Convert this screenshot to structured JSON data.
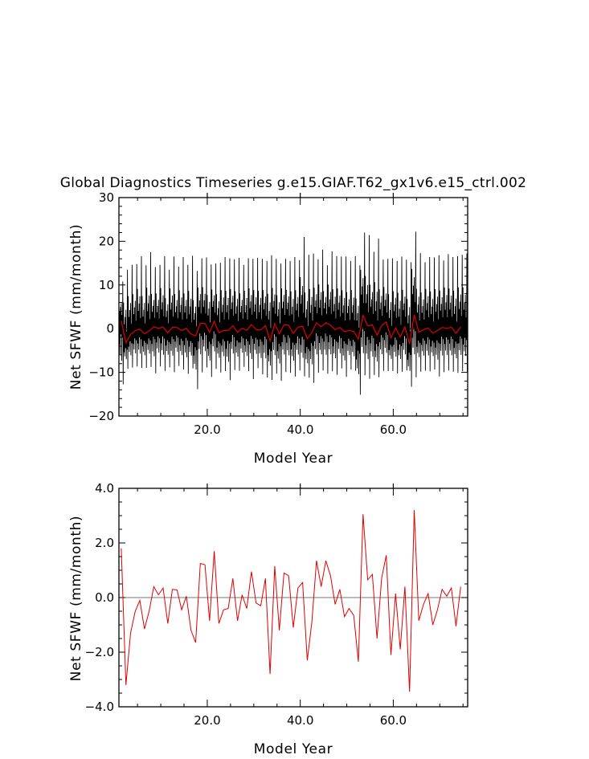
{
  "chart_data": [
    {
      "type": "line",
      "title": "Global Diagnostics Timeseries g.e15.GIAF.T62_gx1v6.e15_ctrl.002",
      "xlabel": "Model Year",
      "ylabel": "Net SFWF (mm/month)",
      "xlim": [
        1,
        76
      ],
      "ylim": [
        -20,
        30
      ],
      "xticks": [
        20,
        40,
        60
      ],
      "xtick_labels": [
        "20.0",
        "40.0",
        "60.0"
      ],
      "yticks": [
        -20,
        -10,
        0,
        10,
        20,
        30
      ],
      "ytick_labels": [
        "−20",
        "−10",
        "0",
        "10",
        "20",
        "30"
      ],
      "zero_line": true,
      "series": [
        {
          "color": "#000000",
          "description": "monthly",
          "monthly_peaks": [
            10.8,
            13.5,
            14.6,
            14.8,
            16.6,
            14.5,
            17.5,
            14.1,
            14.6,
            16.6,
            13.5,
            16.5,
            14.2,
            16.4,
            14.6,
            16.7,
            13.2,
            16.1,
            16.3,
            14.7,
            14.9,
            15.1,
            16.4,
            16.1,
            15.9,
            16.2,
            14.6,
            16.1,
            16.0,
            16.2,
            16.0,
            15.5,
            16.8,
            16.0,
            14.9,
            16.0,
            15.5,
            16.4,
            15.7,
            21.0,
            16.9,
            17.2,
            15.9,
            18.1,
            14.5,
            17.7,
            16.6,
            16.5,
            16.5,
            15.5,
            16.6,
            14.5,
            22.0,
            21.4,
            17.6,
            20.6,
            15.8,
            16.0,
            16.1,
            15.5,
            16.5,
            15.8,
            15.2,
            22.2,
            17.3,
            15.2,
            16.4,
            16.3,
            16.8,
            15.6,
            17.1,
            16.4,
            16.6,
            16.9,
            17.2
          ],
          "monthly_troughs": [
            -13.5,
            -9.5,
            -9.3,
            -9.1,
            -9.5,
            -9.4,
            -9.2,
            -10.8,
            -9.1,
            -10.2,
            -9.3,
            -10.5,
            -9.0,
            -9.8,
            -10.9,
            -9.5,
            -14.5,
            -10.6,
            -9.4,
            -11.6,
            -9.8,
            -10.5,
            -10.2,
            -12.4,
            -10.0,
            -10.1,
            -9.2,
            -10.2,
            -12.2,
            -9.5,
            -11.0,
            -11.8,
            -12.2,
            -10.9,
            -12.5,
            -10.5,
            -10.7,
            -11.5,
            -10.1,
            -11.5,
            -11.7,
            -13.0,
            -10.7,
            -10.1,
            -10.9,
            -10.3,
            -11.1,
            -9.6,
            -11.6,
            -9.8,
            -10.1,
            -15.8,
            -11.4,
            -12.1,
            -11.2,
            -11.6,
            -10.2,
            -10.3,
            -10.1,
            -10.8,
            -10.3,
            -10.1,
            -13.8,
            -11.9,
            -10.3,
            -10.1,
            -10.3,
            -9.8,
            -11.5,
            -10.5,
            -10.1,
            -10.4,
            -10.6,
            -10.3,
            -10.4
          ]
        },
        {
          "color": "#e00000",
          "description": "annual-mean",
          "values_ref": "annual_means"
        }
      ]
    },
    {
      "type": "line",
      "title": "",
      "xlabel": "Model Year",
      "ylabel": "Net SFWF (mm/month)",
      "xlim": [
        1,
        76
      ],
      "ylim": [
        -4,
        4
      ],
      "xticks": [
        20,
        40,
        60
      ],
      "xtick_labels": [
        "20.0",
        "40.0",
        "60.0"
      ],
      "yticks": [
        -4,
        -2,
        0,
        2,
        4
      ],
      "ytick_labels": [
        "−4.0",
        "−2.0",
        "0.0",
        "2.0",
        "4.0"
      ],
      "zero_line": true,
      "series": [
        {
          "color": "#e00000",
          "x_start": 1.5,
          "x_step": 1,
          "values": [
            1.8,
            -3.2,
            -1.3,
            -0.5,
            -0.1,
            -1.15,
            -0.5,
            0.4,
            0.1,
            0.35,
            -0.95,
            0.3,
            0.28,
            -0.45,
            0.05,
            -1.2,
            -1.65,
            1.25,
            1.2,
            -0.85,
            1.7,
            -0.95,
            -0.45,
            -0.4,
            0.7,
            -0.85,
            0.1,
            -0.4,
            0.95,
            -0.2,
            -0.3,
            0.7,
            -2.8,
            1.15,
            -1.2,
            0.9,
            0.8,
            -1.1,
            0.35,
            0.55,
            -2.3,
            -0.9,
            1.35,
            0.4,
            1.35,
            0.8,
            -0.25,
            0.3,
            -0.7,
            -0.4,
            -0.65,
            -2.35,
            3.05,
            0.65,
            0.85,
            -1.5,
            0.7,
            1.55,
            -2.1,
            0.15,
            -1.9,
            0.4,
            -3.45,
            3.2,
            -0.85,
            -0.25,
            0.15,
            -1.0,
            -0.45,
            0.3,
            0.05,
            0.35,
            -1.05,
            0.4
          ]
        }
      ]
    }
  ]
}
